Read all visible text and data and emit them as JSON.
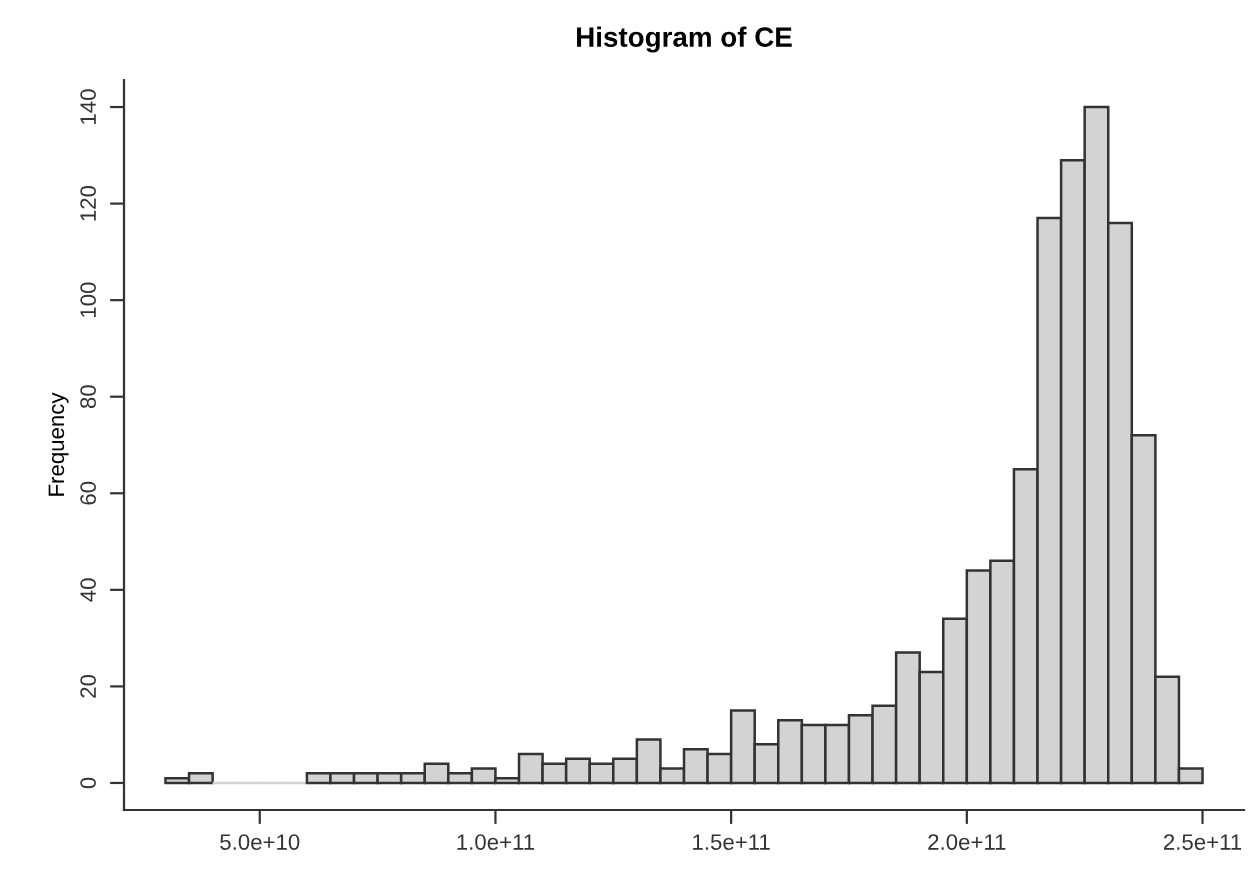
{
  "chart_data": {
    "type": "histogram",
    "title": "Histogram of CE",
    "ylabel": "Frequency",
    "bins": [
      30000000000.0,
      35000000000.0,
      40000000000.0,
      45000000000.0,
      50000000000.0,
      55000000000.0,
      60000000000.0,
      65000000000.0,
      70000000000.0,
      75000000000.0,
      80000000000.0,
      85000000000.0,
      90000000000.0,
      95000000000.0,
      100000000000.0,
      105000000000.0,
      110000000000.0,
      115000000000.0,
      120000000000.0,
      125000000000.0,
      130000000000.0,
      135000000000.0,
      140000000000.0,
      145000000000.0,
      150000000000.0,
      155000000000.0,
      160000000000.0,
      165000000000.0,
      170000000000.0,
      175000000000.0,
      180000000000.0,
      185000000000.0,
      190000000000.0,
      195000000000.0,
      200000000000.0,
      205000000000.0,
      210000000000.0,
      215000000000.0,
      220000000000.0,
      225000000000.0,
      230000000000.0,
      235000000000.0,
      240000000000.0,
      245000000000.0,
      250000000000.0
    ],
    "values": [
      1,
      2,
      0,
      0,
      0,
      0,
      2,
      2,
      2,
      2,
      2,
      4,
      2,
      3,
      1,
      6,
      4,
      5,
      4,
      5,
      9,
      3,
      7,
      6,
      15,
      8,
      13,
      12,
      12,
      14,
      16,
      27,
      23,
      34,
      44,
      46,
      65,
      117,
      129,
      140,
      116,
      72,
      22,
      3
    ],
    "color": "#d3d3d3",
    "xlim": [
      21200000000.0,
      258800000000.0
    ],
    "xticks": [
      {
        "value": 50000000000.0,
        "label": "5.0e+10"
      },
      {
        "value": 100000000000.0,
        "label": "1.0e+11"
      },
      {
        "value": 150000000000.0,
        "label": "1.5e+11"
      },
      {
        "value": 200000000000.0,
        "label": "2.0e+11"
      },
      {
        "value": 250000000000.0,
        "label": "2.5e+11"
      }
    ],
    "ylim": [
      -5.6,
      145.6
    ],
    "yticks": [
      0,
      20,
      40,
      60,
      80,
      100,
      120,
      140
    ],
    "grid": false
  }
}
